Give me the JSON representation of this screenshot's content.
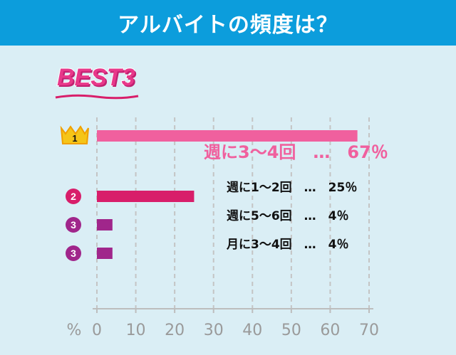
{
  "header": {
    "title": "アルバイトの頻度は？"
  },
  "badge": {
    "text": "BEST3"
  },
  "chart_data": {
    "type": "bar",
    "orientation": "horizontal",
    "unit_label": "%",
    "xlim": [
      0,
      70
    ],
    "ticks": [
      0,
      10,
      20,
      30,
      40,
      50,
      60,
      70
    ],
    "grid": "vertical dashed",
    "series": [
      {
        "values": [
          67,
          25,
          4,
          4
        ]
      }
    ],
    "items": [
      {
        "rank": "1",
        "label": "週に3～4回　…　67％",
        "value": 67,
        "color": "#f0609e"
      },
      {
        "rank": "2",
        "label": "週に1～2回　…　25％",
        "value": 25,
        "color": "#d81e6a"
      },
      {
        "rank": "3",
        "label": "週に5～6回　…　4％",
        "value": 4,
        "color": "#a0268b"
      },
      {
        "rank": "3",
        "label": "月に3～4回　…　4％",
        "value": 4,
        "color": "#a0268b"
      }
    ],
    "rank_colors": {
      "1": "#f0a000",
      "2": "#d81e6a",
      "3": "#a0268b"
    },
    "label_colors": {
      "first": "#f0609e",
      "rest": "#111111"
    }
  }
}
